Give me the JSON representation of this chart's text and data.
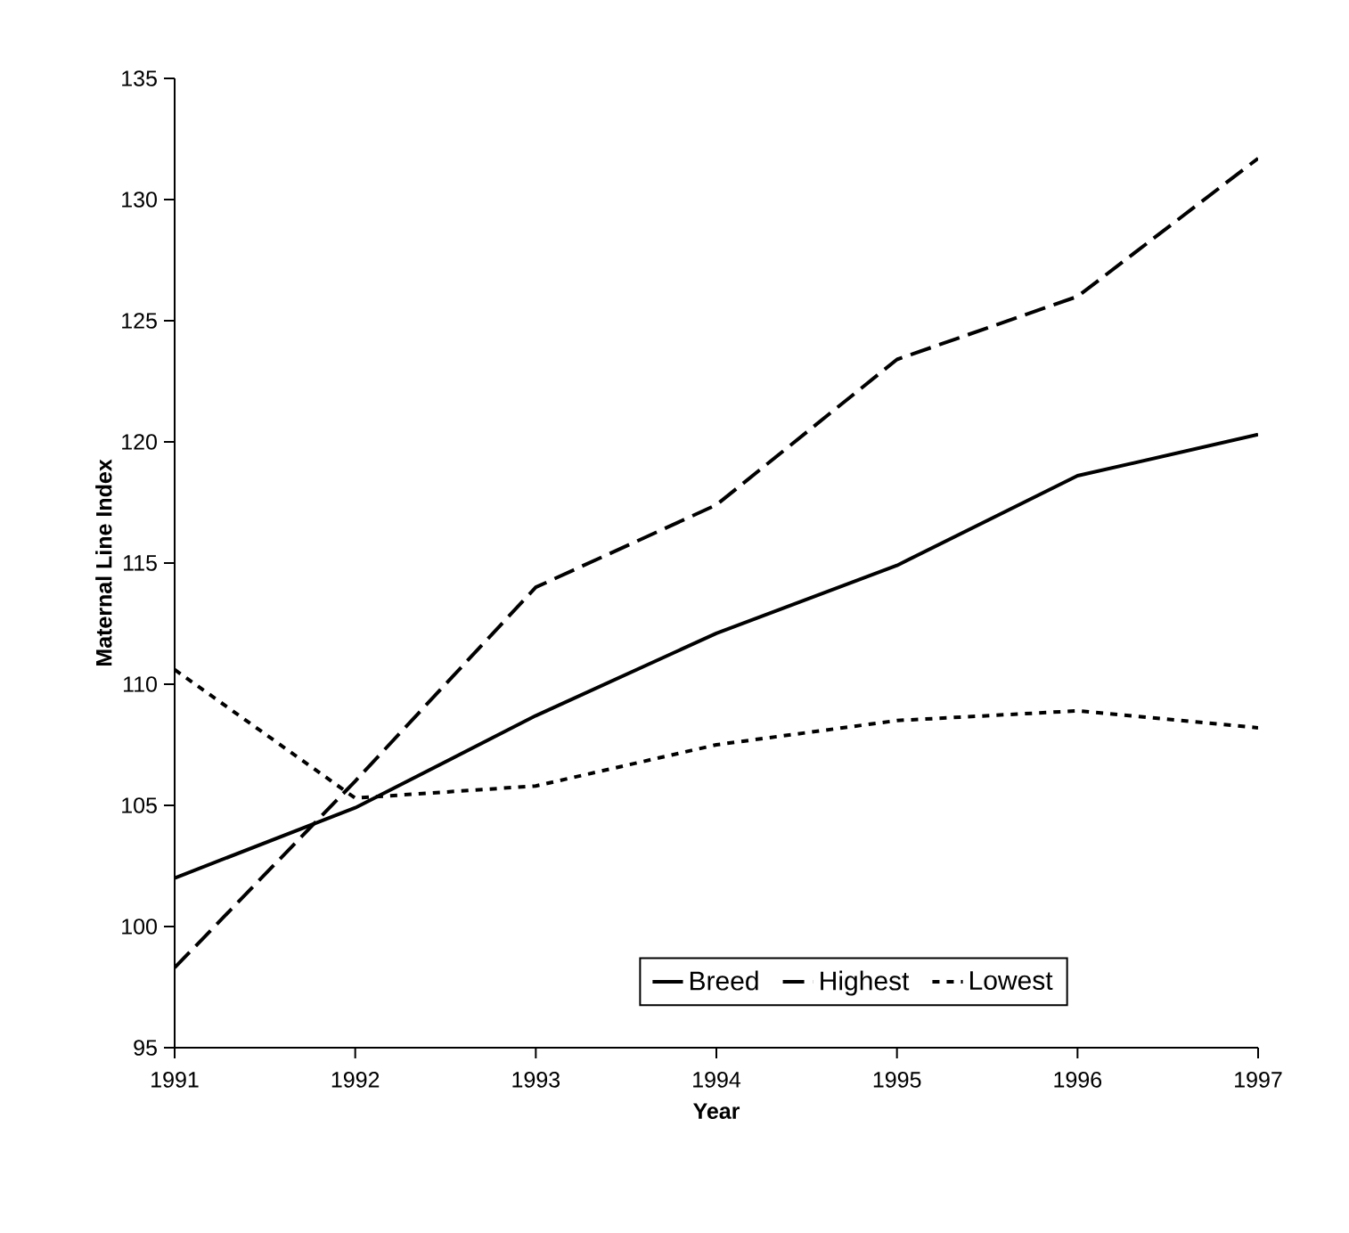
{
  "chart_data": {
    "type": "line",
    "xlabel": "Year",
    "ylabel": "Maternal Line Index",
    "x": [
      1991,
      1992,
      1993,
      1994,
      1995,
      1996,
      1997
    ],
    "series": [
      {
        "name": "Breed",
        "color": "#000000",
        "line_style": "solid",
        "values": [
          102.0,
          104.9,
          108.7,
          112.1,
          114.9,
          118.6,
          120.3
        ]
      },
      {
        "name": "Highest",
        "color": "#000000",
        "line_style": "dashed",
        "values": [
          98.3,
          106.0,
          114.0,
          117.4,
          123.4,
          126.0,
          131.7
        ]
      },
      {
        "name": "Lowest",
        "color": "#000000",
        "line_style": "dotted",
        "values": [
          110.6,
          105.3,
          105.8,
          107.5,
          108.5,
          108.9,
          108.2
        ]
      }
    ],
    "xlim": [
      1991,
      1997
    ],
    "xticks": [
      1991,
      1992,
      1993,
      1994,
      1995,
      1996,
      1997
    ],
    "ylim": [
      95,
      135
    ],
    "yticks": [
      95,
      100,
      105,
      110,
      115,
      120,
      125,
      130,
      135
    ],
    "grid": false,
    "legend": "bottom",
    "marker": "none"
  }
}
